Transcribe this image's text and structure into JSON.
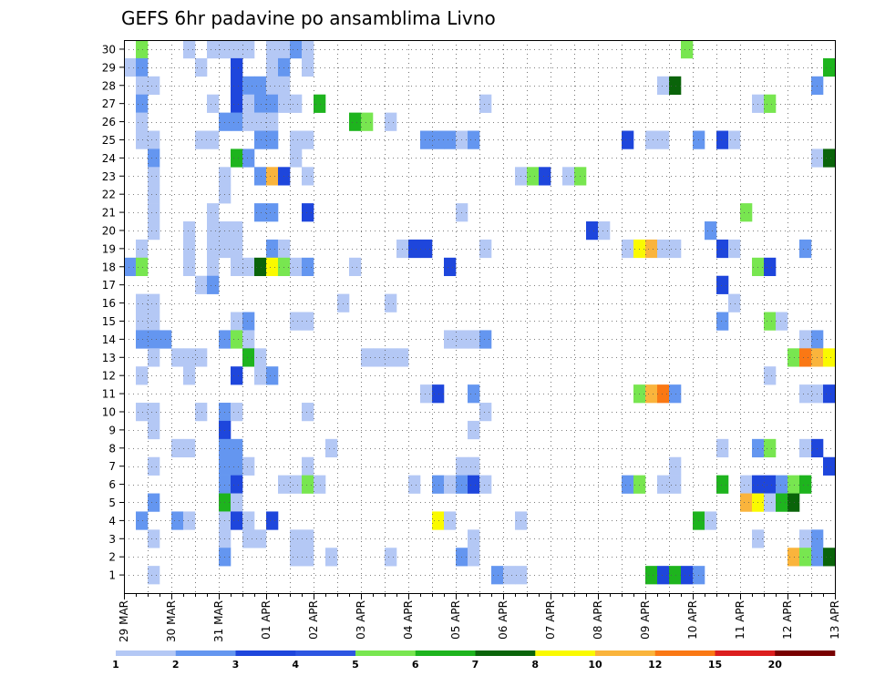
{
  "chart_data": {
    "type": "heatmap",
    "title": "GEFS 6hr padavine po ansamblima Livno",
    "xlabel": "",
    "ylabel": "",
    "grid": true,
    "x_tick_labels": [
      "29 MAR",
      "30 MAR",
      "31 MAR",
      "01 APR",
      "02 APR",
      "03 APR",
      "04 APR",
      "05 APR",
      "06 APR",
      "07 APR",
      "08 APR",
      "09 APR",
      "10 APR",
      "11 APR",
      "12 APR",
      "13 APR"
    ],
    "y_tick_labels": [
      "1",
      "2",
      "3",
      "4",
      "5",
      "6",
      "7",
      "8",
      "9",
      "10",
      "11",
      "12",
      "13",
      "14",
      "15",
      "16",
      "17",
      "18",
      "19",
      "20",
      "21",
      "22",
      "23",
      "24",
      "25",
      "26",
      "27",
      "28",
      "29",
      "30"
    ],
    "x_steps_per_day": 4,
    "x_step_count": 60,
    "ensemble_members": 30,
    "legend_levels": [
      "1",
      "2",
      "3",
      "4",
      "5",
      "6",
      "7",
      "8",
      "10",
      "12",
      "15",
      "20"
    ],
    "legend_colors": [
      "#b4c8f5",
      "#6496f0",
      "#1e46dc",
      "#2d56e2",
      "#78e650",
      "#1eb41e",
      "#0a640a",
      "#fafa00",
      "#fab43c",
      "#fa7814",
      "#dc1e1e",
      "#780000"
    ],
    "cells": [
      [
        30,
        1,
        5
      ],
      [
        30,
        5,
        1
      ],
      [
        30,
        7,
        1
      ],
      [
        30,
        8,
        1
      ],
      [
        30,
        9,
        1
      ],
      [
        30,
        10,
        1
      ],
      [
        30,
        12,
        1
      ],
      [
        30,
        13,
        1
      ],
      [
        30,
        14,
        2
      ],
      [
        30,
        15,
        1
      ],
      [
        30,
        47,
        5
      ],
      [
        29,
        0,
        1
      ],
      [
        29,
        1,
        2
      ],
      [
        29,
        6,
        1
      ],
      [
        29,
        9,
        3
      ],
      [
        29,
        12,
        1
      ],
      [
        29,
        13,
        2
      ],
      [
        29,
        15,
        1
      ],
      [
        29,
        59,
        6
      ],
      [
        28,
        1,
        1
      ],
      [
        28,
        2,
        1
      ],
      [
        28,
        9,
        3
      ],
      [
        28,
        10,
        2
      ],
      [
        28,
        11,
        2
      ],
      [
        28,
        12,
        1
      ],
      [
        28,
        13,
        1
      ],
      [
        28,
        45,
        1
      ],
      [
        28,
        46,
        7
      ],
      [
        28,
        58,
        2
      ],
      [
        27,
        1,
        2
      ],
      [
        27,
        7,
        1
      ],
      [
        27,
        9,
        3
      ],
      [
        27,
        10,
        1
      ],
      [
        27,
        11,
        2
      ],
      [
        27,
        12,
        2
      ],
      [
        27,
        13,
        1
      ],
      [
        27,
        14,
        1
      ],
      [
        27,
        16,
        6
      ],
      [
        27,
        30,
        1
      ],
      [
        27,
        53,
        1
      ],
      [
        27,
        54,
        5
      ],
      [
        26,
        1,
        1
      ],
      [
        26,
        8,
        2
      ],
      [
        26,
        9,
        2
      ],
      [
        26,
        10,
        1
      ],
      [
        26,
        11,
        1
      ],
      [
        26,
        12,
        1
      ],
      [
        26,
        19,
        6
      ],
      [
        26,
        20,
        5
      ],
      [
        26,
        22,
        1
      ],
      [
        25,
        1,
        1
      ],
      [
        25,
        2,
        1
      ],
      [
        25,
        6,
        1
      ],
      [
        25,
        7,
        1
      ],
      [
        25,
        11,
        2
      ],
      [
        25,
        12,
        2
      ],
      [
        25,
        14,
        1
      ],
      [
        25,
        15,
        1
      ],
      [
        25,
        25,
        2
      ],
      [
        25,
        26,
        2
      ],
      [
        25,
        27,
        2
      ],
      [
        25,
        28,
        1
      ],
      [
        25,
        29,
        2
      ],
      [
        25,
        42,
        3
      ],
      [
        25,
        44,
        1
      ],
      [
        25,
        45,
        1
      ],
      [
        25,
        48,
        2
      ],
      [
        25,
        50,
        3
      ],
      [
        25,
        51,
        1
      ],
      [
        24,
        2,
        2
      ],
      [
        24,
        9,
        6
      ],
      [
        24,
        10,
        2
      ],
      [
        24,
        14,
        1
      ],
      [
        24,
        58,
        1
      ],
      [
        24,
        59,
        7
      ],
      [
        23,
        2,
        1
      ],
      [
        23,
        8,
        1
      ],
      [
        23,
        11,
        2
      ],
      [
        23,
        12,
        10
      ],
      [
        23,
        13,
        3
      ],
      [
        23,
        15,
        1
      ],
      [
        23,
        33,
        1
      ],
      [
        23,
        34,
        5
      ],
      [
        23,
        35,
        3
      ],
      [
        23,
        37,
        1
      ],
      [
        23,
        38,
        5
      ],
      [
        22,
        2,
        1
      ],
      [
        22,
        8,
        1
      ],
      [
        21,
        2,
        1
      ],
      [
        21,
        7,
        1
      ],
      [
        21,
        11,
        2
      ],
      [
        21,
        12,
        2
      ],
      [
        21,
        15,
        3
      ],
      [
        21,
        28,
        1
      ],
      [
        21,
        52,
        5
      ],
      [
        20,
        2,
        1
      ],
      [
        20,
        5,
        1
      ],
      [
        20,
        7,
        1
      ],
      [
        20,
        8,
        1
      ],
      [
        20,
        9,
        1
      ],
      [
        20,
        39,
        3
      ],
      [
        20,
        40,
        1
      ],
      [
        20,
        49,
        2
      ],
      [
        19,
        1,
        1
      ],
      [
        19,
        5,
        1
      ],
      [
        19,
        7,
        1
      ],
      [
        19,
        8,
        1
      ],
      [
        19,
        9,
        1
      ],
      [
        19,
        12,
        2
      ],
      [
        19,
        13,
        1
      ],
      [
        19,
        23,
        1
      ],
      [
        19,
        24,
        3
      ],
      [
        19,
        25,
        3
      ],
      [
        19,
        30,
        1
      ],
      [
        19,
        42,
        1
      ],
      [
        19,
        43,
        8
      ],
      [
        19,
        44,
        10
      ],
      [
        19,
        45,
        1
      ],
      [
        19,
        46,
        1
      ],
      [
        19,
        50,
        3
      ],
      [
        19,
        51,
        1
      ],
      [
        19,
        57,
        2
      ],
      [
        18,
        0,
        2
      ],
      [
        18,
        1,
        5
      ],
      [
        18,
        5,
        1
      ],
      [
        18,
        7,
        1
      ],
      [
        18,
        9,
        1
      ],
      [
        18,
        10,
        1
      ],
      [
        18,
        11,
        7
      ],
      [
        18,
        12,
        8
      ],
      [
        18,
        13,
        5
      ],
      [
        18,
        14,
        1
      ],
      [
        18,
        15,
        2
      ],
      [
        18,
        19,
        1
      ],
      [
        18,
        27,
        3
      ],
      [
        18,
        53,
        5
      ],
      [
        18,
        54,
        3
      ],
      [
        17,
        6,
        1
      ],
      [
        17,
        7,
        2
      ],
      [
        17,
        50,
        3
      ],
      [
        16,
        1,
        1
      ],
      [
        16,
        2,
        1
      ],
      [
        16,
        18,
        1
      ],
      [
        16,
        22,
        1
      ],
      [
        16,
        51,
        1
      ],
      [
        15,
        1,
        1
      ],
      [
        15,
        2,
        1
      ],
      [
        15,
        9,
        1
      ],
      [
        15,
        10,
        2
      ],
      [
        15,
        14,
        1
      ],
      [
        15,
        15,
        1
      ],
      [
        15,
        50,
        2
      ],
      [
        15,
        54,
        5
      ],
      [
        15,
        55,
        1
      ],
      [
        14,
        1,
        2
      ],
      [
        14,
        2,
        2
      ],
      [
        14,
        3,
        2
      ],
      [
        14,
        8,
        2
      ],
      [
        14,
        9,
        5
      ],
      [
        14,
        10,
        1
      ],
      [
        14,
        27,
        1
      ],
      [
        14,
        28,
        1
      ],
      [
        14,
        29,
        1
      ],
      [
        14,
        30,
        2
      ],
      [
        14,
        57,
        1
      ],
      [
        14,
        58,
        2
      ],
      [
        13,
        2,
        1
      ],
      [
        13,
        4,
        1
      ],
      [
        13,
        5,
        1
      ],
      [
        13,
        6,
        1
      ],
      [
        13,
        10,
        6
      ],
      [
        13,
        11,
        1
      ],
      [
        13,
        20,
        1
      ],
      [
        13,
        21,
        1
      ],
      [
        13,
        22,
        1
      ],
      [
        13,
        23,
        1
      ],
      [
        13,
        56,
        5
      ],
      [
        13,
        57,
        12
      ],
      [
        13,
        58,
        10
      ],
      [
        13,
        59,
        8
      ],
      [
        12,
        1,
        1
      ],
      [
        12,
        5,
        1
      ],
      [
        12,
        9,
        3
      ],
      [
        12,
        11,
        1
      ],
      [
        12,
        12,
        2
      ],
      [
        12,
        54,
        1
      ],
      [
        11,
        25,
        1
      ],
      [
        11,
        26,
        3
      ],
      [
        11,
        29,
        2
      ],
      [
        11,
        43,
        5
      ],
      [
        11,
        44,
        10
      ],
      [
        11,
        45,
        12
      ],
      [
        11,
        46,
        2
      ],
      [
        11,
        57,
        1
      ],
      [
        11,
        58,
        1
      ],
      [
        11,
        59,
        3
      ],
      [
        10,
        1,
        1
      ],
      [
        10,
        2,
        1
      ],
      [
        10,
        6,
        1
      ],
      [
        10,
        8,
        2
      ],
      [
        10,
        9,
        1
      ],
      [
        10,
        15,
        1
      ],
      [
        10,
        30,
        1
      ],
      [
        9,
        2,
        1
      ],
      [
        9,
        8,
        3
      ],
      [
        9,
        29,
        1
      ],
      [
        8,
        4,
        1
      ],
      [
        8,
        5,
        1
      ],
      [
        8,
        8,
        2
      ],
      [
        8,
        9,
        2
      ],
      [
        8,
        17,
        1
      ],
      [
        8,
        50,
        1
      ],
      [
        8,
        53,
        2
      ],
      [
        8,
        54,
        5
      ],
      [
        8,
        57,
        1
      ],
      [
        8,
        58,
        3
      ],
      [
        7,
        2,
        1
      ],
      [
        7,
        8,
        2
      ],
      [
        7,
        9,
        2
      ],
      [
        7,
        10,
        1
      ],
      [
        7,
        15,
        1
      ],
      [
        7,
        28,
        1
      ],
      [
        7,
        29,
        1
      ],
      [
        7,
        46,
        1
      ],
      [
        7,
        59,
        3
      ],
      [
        6,
        8,
        2
      ],
      [
        6,
        9,
        3
      ],
      [
        6,
        13,
        1
      ],
      [
        6,
        14,
        1
      ],
      [
        6,
        15,
        5
      ],
      [
        6,
        16,
        1
      ],
      [
        6,
        24,
        1
      ],
      [
        6,
        26,
        2
      ],
      [
        6,
        27,
        1
      ],
      [
        6,
        28,
        2
      ],
      [
        6,
        29,
        3
      ],
      [
        6,
        30,
        1
      ],
      [
        6,
        42,
        2
      ],
      [
        6,
        43,
        5
      ],
      [
        6,
        45,
        1
      ],
      [
        6,
        46,
        1
      ],
      [
        6,
        50,
        6
      ],
      [
        6,
        52,
        1
      ],
      [
        6,
        53,
        3
      ],
      [
        6,
        54,
        3
      ],
      [
        6,
        55,
        2
      ],
      [
        6,
        56,
        5
      ],
      [
        6,
        57,
        6
      ],
      [
        5,
        2,
        2
      ],
      [
        5,
        8,
        6
      ],
      [
        5,
        9,
        1
      ],
      [
        5,
        52,
        10
      ],
      [
        5,
        53,
        8
      ],
      [
        5,
        54,
        1
      ],
      [
        5,
        55,
        6
      ],
      [
        5,
        56,
        7
      ],
      [
        4,
        1,
        2
      ],
      [
        4,
        4,
        2
      ],
      [
        4,
        5,
        1
      ],
      [
        4,
        8,
        1
      ],
      [
        4,
        9,
        3
      ],
      [
        4,
        10,
        1
      ],
      [
        4,
        12,
        3
      ],
      [
        4,
        26,
        8
      ],
      [
        4,
        27,
        1
      ],
      [
        4,
        33,
        1
      ],
      [
        4,
        48,
        6
      ],
      [
        4,
        49,
        1
      ],
      [
        3,
        2,
        1
      ],
      [
        3,
        8,
        1
      ],
      [
        3,
        10,
        1
      ],
      [
        3,
        11,
        1
      ],
      [
        3,
        14,
        1
      ],
      [
        3,
        15,
        1
      ],
      [
        3,
        29,
        1
      ],
      [
        3,
        53,
        1
      ],
      [
        3,
        57,
        1
      ],
      [
        3,
        58,
        2
      ],
      [
        2,
        8,
        2
      ],
      [
        2,
        14,
        1
      ],
      [
        2,
        15,
        1
      ],
      [
        2,
        17,
        1
      ],
      [
        2,
        22,
        1
      ],
      [
        2,
        28,
        2
      ],
      [
        2,
        29,
        1
      ],
      [
        2,
        56,
        10
      ],
      [
        2,
        57,
        5
      ],
      [
        2,
        58,
        2
      ],
      [
        2,
        59,
        7
      ],
      [
        1,
        2,
        1
      ],
      [
        1,
        31,
        2
      ],
      [
        1,
        32,
        1
      ],
      [
        1,
        33,
        1
      ],
      [
        1,
        44,
        6
      ],
      [
        1,
        45,
        3
      ],
      [
        1,
        46,
        6
      ],
      [
        1,
        47,
        3
      ],
      [
        1,
        48,
        2
      ]
    ]
  }
}
